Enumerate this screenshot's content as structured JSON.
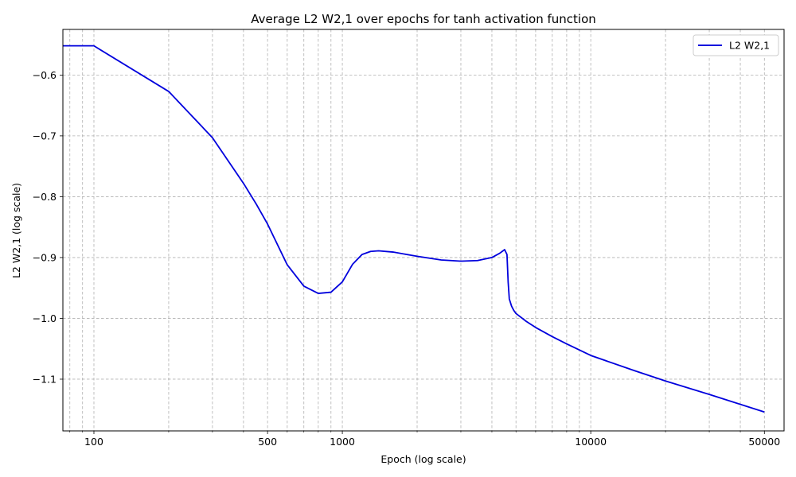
{
  "chart_data": {
    "type": "line",
    "title": "Average L2 W2,1 over epochs for tanh activation function",
    "xlabel": "Epoch (log scale)",
    "ylabel": "L2 W2,1 (log scale)",
    "xscale": "log",
    "xlim": [
      75,
      60000
    ],
    "ylim": [
      -1.185,
      -0.525
    ],
    "grid": true,
    "legend_position": "top-right",
    "x_ticks": [
      {
        "value": 100,
        "label": "100"
      },
      {
        "value": 500,
        "label": "500"
      },
      {
        "value": 1000,
        "label": "1000"
      },
      {
        "value": 10000,
        "label": "10000"
      },
      {
        "value": 50000,
        "label": "50000"
      }
    ],
    "x_minor_gridlines": [
      80,
      90,
      200,
      300,
      400,
      600,
      700,
      800,
      900,
      2000,
      3000,
      4000,
      5000,
      6000,
      7000,
      8000,
      9000,
      20000,
      30000,
      40000
    ],
    "y_ticks": [
      {
        "value": -0.6,
        "label": "−0.6"
      },
      {
        "value": -0.7,
        "label": "−0.7"
      },
      {
        "value": -0.8,
        "label": "−0.8"
      },
      {
        "value": -0.9,
        "label": "−0.9"
      },
      {
        "value": -1.0,
        "label": "−1.0"
      },
      {
        "value": -1.1,
        "label": "−1.1"
      }
    ],
    "series": [
      {
        "name": "L2 W2,1",
        "color": "#0000dd",
        "x": [
          75,
          100,
          200,
          300,
          400,
          450,
          500,
          600,
          700,
          800,
          900,
          1000,
          1100,
          1200,
          1300,
          1400,
          1600,
          2000,
          2500,
          3000,
          3500,
          4000,
          4300,
          4500,
          4600,
          4650,
          4700,
          4800,
          4900,
          5000,
          5500,
          6000,
          7000,
          8000,
          10000,
          15000,
          20000,
          30000,
          50000
        ],
        "y": [
          -0.552,
          -0.552,
          -0.627,
          -0.703,
          -0.778,
          -0.812,
          -0.845,
          -0.912,
          -0.947,
          -0.959,
          -0.957,
          -0.94,
          -0.911,
          -0.895,
          -0.89,
          -0.889,
          -0.891,
          -0.898,
          -0.904,
          -0.906,
          -0.905,
          -0.9,
          -0.893,
          -0.887,
          -0.895,
          -0.94,
          -0.968,
          -0.98,
          -0.987,
          -0.992,
          -1.005,
          -1.015,
          -1.03,
          -1.042,
          -1.061,
          -1.086,
          -1.103,
          -1.125,
          -1.154
        ]
      }
    ]
  }
}
